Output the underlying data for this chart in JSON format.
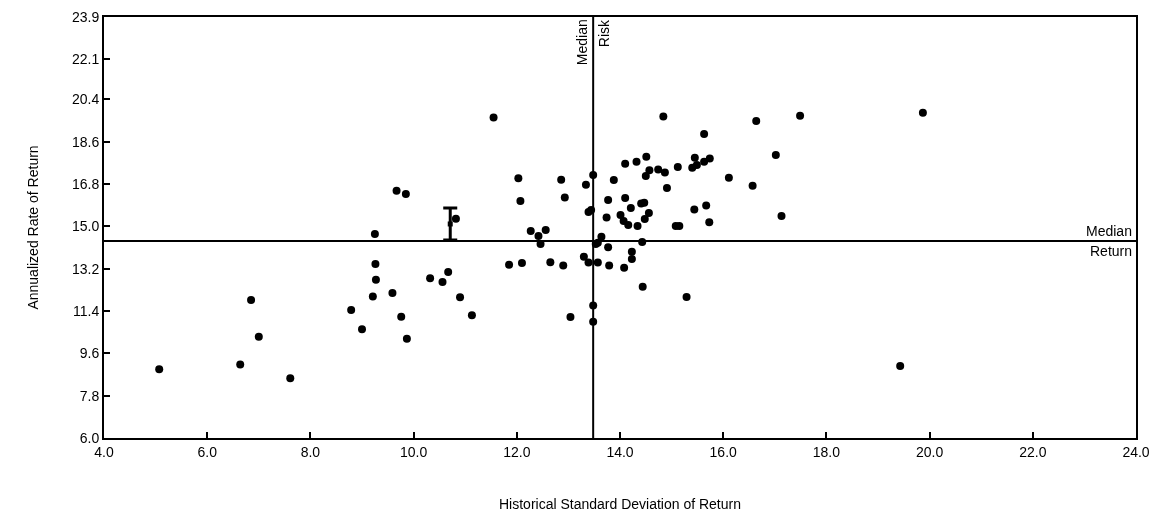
{
  "chart_data": {
    "type": "scatter",
    "xlabel": "Historical Standard Deviation of Return",
    "ylabel": "Annualized Rate of Return",
    "xlim": [
      4,
      24
    ],
    "ylim": [
      6,
      23.9
    ],
    "xticks": [
      {
        "value": 4,
        "label": "4.0"
      },
      {
        "value": 6,
        "label": "6.0"
      },
      {
        "value": 8,
        "label": "8.0"
      },
      {
        "value": 10,
        "label": "10.0"
      },
      {
        "value": 12,
        "label": "12.0"
      },
      {
        "value": 14,
        "label": "14.0"
      },
      {
        "value": 16,
        "label": "16.0"
      },
      {
        "value": 18,
        "label": "18.0"
      },
      {
        "value": 20,
        "label": "20.0"
      },
      {
        "value": 22,
        "label": "22.0"
      },
      {
        "value": 24,
        "label": "24.0"
      }
    ],
    "yticks": [
      {
        "value": 6,
        "label": "6.0"
      },
      {
        "value": 7.8,
        "label": "7.8"
      },
      {
        "value": 9.6,
        "label": "9.6"
      },
      {
        "value": 11.4,
        "label": "11.4"
      },
      {
        "value": 13.2,
        "label": "13.2"
      },
      {
        "value": 15,
        "label": "15.0"
      },
      {
        "value": 16.8,
        "label": "16.8"
      },
      {
        "value": 18.6,
        "label": "18.6"
      },
      {
        "value": 20.4,
        "label": "20.4"
      },
      {
        "value": 22.1,
        "label": "22.1"
      },
      {
        "value": 23.9,
        "label": "23.9"
      }
    ],
    "grid": false,
    "marker": "circle",
    "ref_lines": [
      {
        "axis": "x",
        "value": 13.48,
        "label": "Median Risk",
        "color": "#000000"
      },
      {
        "axis": "y",
        "value": 14.38,
        "label": "Median Return",
        "color": "#000000"
      }
    ],
    "series": [
      {
        "color": "#000000",
        "x": [
          5.07,
          6.64,
          6.85,
          7.0,
          7.61,
          8.79,
          9.0,
          9.21,
          9.26,
          9.27,
          9.25,
          9.59,
          9.67,
          9.85,
          9.76,
          9.87,
          10.32,
          10.56,
          10.67,
          10.9,
          11.13,
          10.82,
          11.55,
          14.84,
          16.64,
          15.63,
          17.02,
          14.51,
          14.32,
          14.1,
          15.45,
          15.74,
          15.63,
          15.49,
          15.4,
          15.12,
          14.57,
          14.74,
          14.87,
          14.5,
          16.11,
          16.57,
          14.91,
          13.48,
          13.34,
          13.88,
          12.86,
          12.03,
          12.07,
          12.93,
          13.77,
          14.1,
          14.21,
          14.41,
          14.47,
          14.56,
          14.48,
          14.34,
          14.16,
          14.07,
          14.01,
          13.74,
          13.39,
          13.44,
          15.44,
          15.67,
          15.73,
          15.08,
          15.15,
          17.13,
          12.27,
          12.42,
          12.56,
          12.46,
          13.64,
          13.57,
          13.53,
          13.77,
          14.43,
          14.23,
          14.23,
          11.85,
          12.1,
          12.65,
          12.9,
          13.3,
          13.39,
          13.57,
          13.79,
          14.08,
          14.44,
          15.29,
          13.48,
          13.04,
          13.48,
          17.49,
          19.87,
          19.43
        ],
        "values": [
          8.92,
          9.13,
          11.87,
          10.31,
          8.54,
          11.44,
          10.62,
          12.02,
          13.4,
          12.73,
          14.67,
          12.16,
          16.51,
          16.37,
          11.16,
          10.22,
          12.79,
          12.63,
          13.06,
          11.98,
          11.22,
          15.32,
          19.63,
          19.67,
          19.48,
          18.93,
          18.03,
          17.96,
          17.75,
          17.66,
          17.92,
          17.88,
          17.75,
          17.61,
          17.49,
          17.52,
          17.38,
          17.42,
          17.29,
          17.14,
          17.07,
          16.73,
          16.63,
          17.18,
          16.77,
          16.97,
          16.98,
          17.04,
          16.08,
          16.23,
          16.12,
          16.2,
          15.78,
          15.97,
          16.0,
          15.57,
          15.31,
          15.01,
          15.06,
          15.23,
          15.48,
          15.37,
          15.61,
          15.69,
          15.72,
          15.89,
          15.17,
          15.01,
          15.01,
          15.44,
          14.8,
          14.59,
          14.84,
          14.25,
          14.56,
          14.3,
          14.25,
          14.11,
          14.33,
          13.92,
          13.61,
          13.37,
          13.44,
          13.47,
          13.33,
          13.71,
          13.46,
          13.46,
          13.33,
          13.24,
          12.43,
          11.99,
          11.63,
          11.14,
          10.94,
          19.7,
          19.83,
          9.06
        ]
      },
      {
        "color": "#000000",
        "marker": "square",
        "x": [
          10.71
        ],
        "values": [
          15.1
        ],
        "errors": [
          [
            14.42,
            15.78
          ]
        ]
      }
    ]
  }
}
